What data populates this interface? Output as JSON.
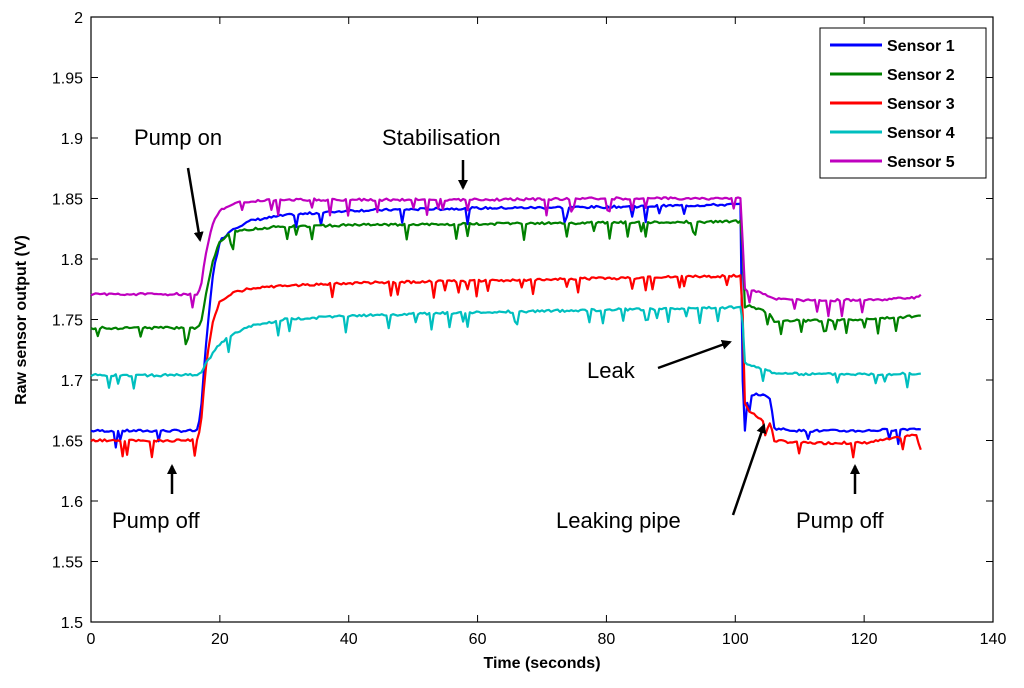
{
  "chart_data": {
    "type": "line",
    "title": "",
    "xlabel": "Time (seconds)",
    "ylabel": "Raw sensor output (V)",
    "xlim": [
      0,
      140
    ],
    "ylim": [
      1.5,
      2.0
    ],
    "xticks": [
      0,
      20,
      40,
      60,
      80,
      100,
      120,
      140
    ],
    "yticks": [
      1.5,
      1.55,
      1.6,
      1.65,
      1.7,
      1.75,
      1.8,
      1.85,
      1.9,
      1.95,
      2
    ],
    "xtick_labels": [
      "0",
      "20",
      "40",
      "60",
      "80",
      "100",
      "120",
      "140"
    ],
    "ytick_labels": [
      "1.5",
      "1.55",
      "1.6",
      "1.65",
      "1.7",
      "1.75",
      "1.8",
      "1.85",
      "1.9",
      "1.95",
      "2"
    ],
    "grid": false,
    "legend": "top-right",
    "series": [
      {
        "name": "Sensor 1",
        "color": "#0000ff",
        "x": [
          0,
          16.5,
          17,
          18,
          19,
          20,
          22,
          25,
          30,
          40,
          60,
          80,
          100,
          101,
          101.2,
          102,
          104,
          105.5,
          106,
          110,
          120,
          129
        ],
        "y": [
          1.658,
          1.658,
          1.67,
          1.74,
          1.79,
          1.815,
          1.825,
          1.832,
          1.836,
          1.84,
          1.842,
          1.843,
          1.845,
          1.845,
          1.65,
          1.688,
          1.688,
          1.685,
          1.66,
          1.658,
          1.658,
          1.66
        ]
      },
      {
        "name": "Sensor 2",
        "color": "#008000",
        "x": [
          0,
          16.5,
          17,
          18,
          19,
          20,
          22,
          25,
          30,
          40,
          60,
          80,
          100,
          101,
          101.5,
          102,
          104,
          105,
          106,
          110,
          120,
          129
        ],
        "y": [
          1.743,
          1.743,
          1.745,
          1.775,
          1.8,
          1.815,
          1.822,
          1.825,
          1.827,
          1.828,
          1.829,
          1.83,
          1.831,
          1.831,
          1.76,
          1.762,
          1.758,
          1.756,
          1.749,
          1.749,
          1.75,
          1.753
        ]
      },
      {
        "name": "Sensor 3",
        "color": "#ff0000",
        "x": [
          0,
          16.5,
          17,
          18,
          19,
          20,
          22,
          25,
          30,
          40,
          60,
          80,
          100,
          101,
          101.5,
          102,
          104,
          105,
          105.5,
          106,
          110,
          120,
          125,
          128,
          129
        ],
        "y": [
          1.65,
          1.65,
          1.66,
          1.72,
          1.75,
          1.765,
          1.772,
          1.776,
          1.778,
          1.78,
          1.782,
          1.784,
          1.786,
          1.786,
          1.68,
          1.675,
          1.668,
          1.66,
          1.665,
          1.65,
          1.648,
          1.648,
          1.652,
          1.655,
          1.64
        ]
      },
      {
        "name": "Sensor 4",
        "color": "#00bfbf",
        "x": [
          0,
          16.5,
          17,
          18,
          20,
          22,
          25,
          30,
          40,
          60,
          80,
          100,
          101,
          101.5,
          102,
          104,
          105,
          106,
          110,
          120,
          129
        ],
        "y": [
          1.704,
          1.704,
          1.705,
          1.715,
          1.73,
          1.738,
          1.745,
          1.75,
          1.753,
          1.756,
          1.758,
          1.76,
          1.76,
          1.715,
          1.712,
          1.71,
          1.708,
          1.706,
          1.705,
          1.705,
          1.705
        ]
      },
      {
        "name": "Sensor 5",
        "color": "#bf00bf",
        "x": [
          0,
          16.5,
          17,
          18,
          19,
          20,
          22,
          25,
          30,
          40,
          60,
          80,
          100,
          101,
          101.5,
          102,
          104,
          106,
          110,
          120,
          128,
          129
        ],
        "y": [
          1.771,
          1.771,
          1.775,
          1.81,
          1.83,
          1.84,
          1.846,
          1.848,
          1.849,
          1.849,
          1.849,
          1.85,
          1.85,
          1.85,
          1.775,
          1.774,
          1.772,
          1.767,
          1.766,
          1.766,
          1.768,
          1.772
        ]
      }
    ],
    "annotations": [
      {
        "text": "Pump on",
        "arrow_x": 17.5,
        "arrow_y": 1.815
      },
      {
        "text": "Stabilisation",
        "arrow_x": 57,
        "arrow_y": 1.855
      },
      {
        "text": "Pump off",
        "arrow_x": 13,
        "arrow_y": 1.638
      },
      {
        "text": "Leak",
        "arrow_x": 100.5,
        "arrow_y": 1.73
      },
      {
        "text": "Leaking pipe",
        "arrow_x": 104,
        "arrow_y": 1.66
      },
      {
        "text": "Pump off",
        "arrow_x": 118,
        "arrow_y": 1.638
      }
    ]
  }
}
